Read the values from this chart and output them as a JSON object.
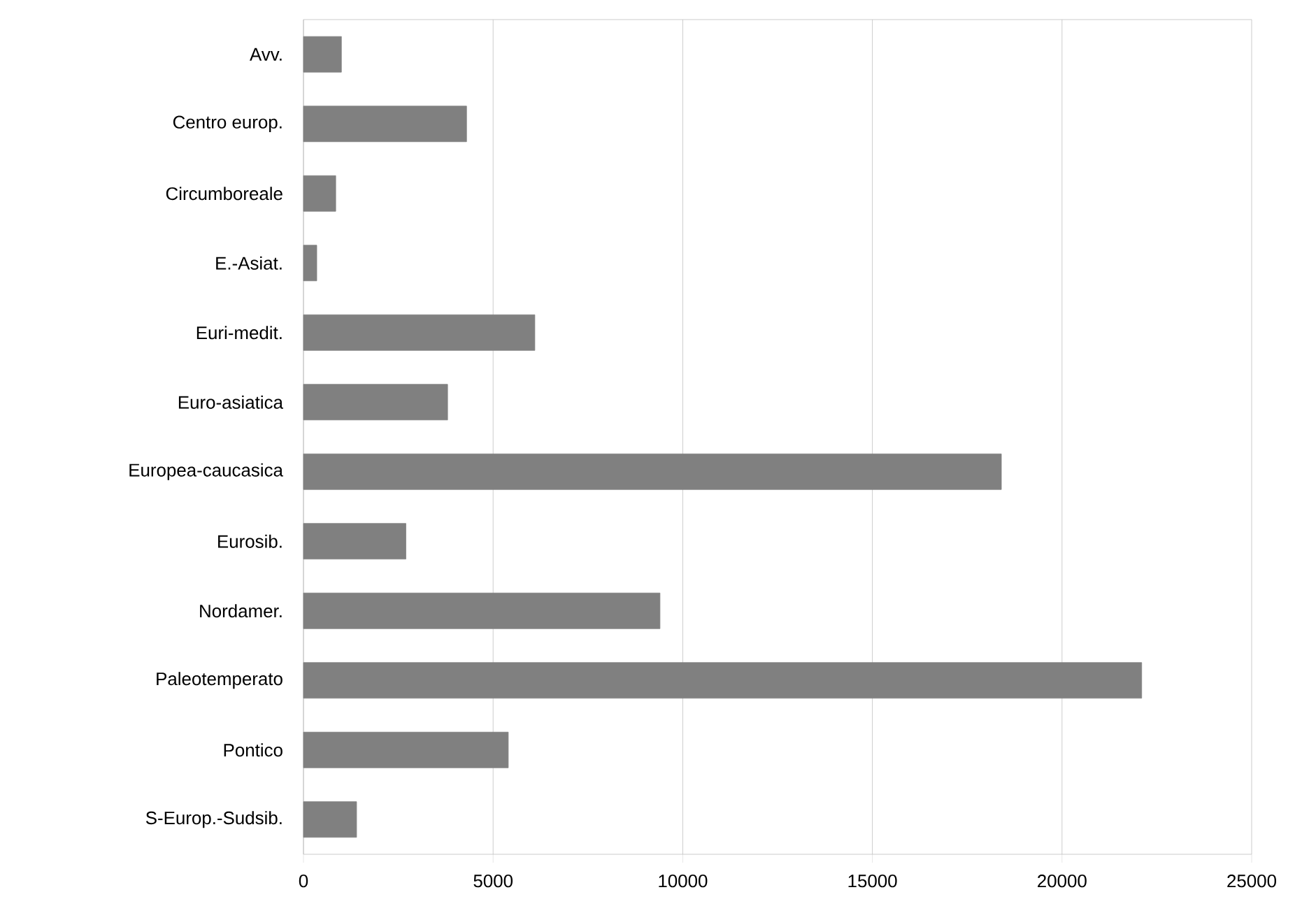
{
  "chart_data": {
    "type": "bar",
    "orientation": "horizontal",
    "categories": [
      "Avv.",
      "Centro europ.",
      "Circumboreale",
      "E.-Asiat.",
      "Euri-medit.",
      "Euro-asiatica",
      "Europea-caucasica",
      "Eurosib.",
      "Nordamer.",
      "Paleotemperato",
      "Pontico",
      "S-Europ.-Sudsib."
    ],
    "values": [
      1000,
      4300,
      850,
      350,
      6100,
      3800,
      18400,
      2700,
      9400,
      22100,
      5400,
      1400
    ],
    "color": "#808080",
    "xlim": [
      0,
      25000
    ],
    "xticks": [
      0,
      5000,
      10000,
      15000,
      20000,
      25000
    ],
    "grid": "x"
  }
}
